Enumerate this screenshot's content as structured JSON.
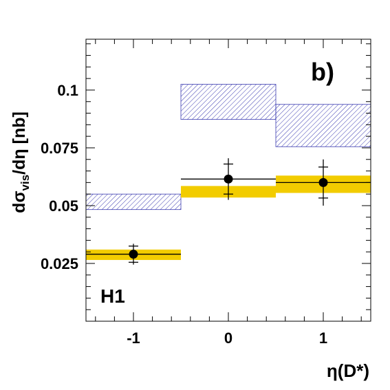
{
  "chart_data": {
    "type": "scatter",
    "panel_label": "b)",
    "experiment_label": "H1",
    "ylabel_parts": {
      "main": "dσ",
      "sub": "vis",
      "tail": "/dη [nb]"
    },
    "xlabel": "η(D*)",
    "xlim": [
      -1.5,
      1.5
    ],
    "ylim": [
      0.0,
      0.122
    ],
    "x_ticks": [
      -1,
      0,
      1
    ],
    "x_tick_labels": [
      "-1",
      "0",
      "1"
    ],
    "y_ticks": [
      0.025,
      0.05,
      0.075,
      0.1
    ],
    "y_tick_labels": [
      "0.025",
      "0.05",
      "0.075",
      "0.1"
    ],
    "grid": false,
    "bins": [
      [
        -1.5,
        -0.5
      ],
      [
        -0.5,
        0.5
      ],
      [
        0.5,
        1.5
      ]
    ],
    "series": [
      {
        "style": "points-with-errors",
        "color": "#000000",
        "x": [
          -1,
          0,
          1
        ],
        "y": [
          0.029,
          0.0615,
          0.06
        ],
        "stat_err": [
          0.0035,
          0.0065,
          0.0067
        ],
        "tot_err": [
          0.0045,
          0.009,
          0.01
        ]
      },
      {
        "style": "band",
        "color": "#f2cc00",
        "x": [
          -1,
          0,
          1
        ],
        "y_low": [
          0.0265,
          0.0535,
          0.0555
        ],
        "y_high": [
          0.031,
          0.0585,
          0.063
        ]
      },
      {
        "style": "hatched-band",
        "color": "#3a3ab0",
        "x": [
          -1,
          0,
          1
        ],
        "y_low": [
          0.0483,
          0.0873,
          0.0755
        ],
        "y_high": [
          0.055,
          0.1025,
          0.0938
        ]
      }
    ]
  }
}
